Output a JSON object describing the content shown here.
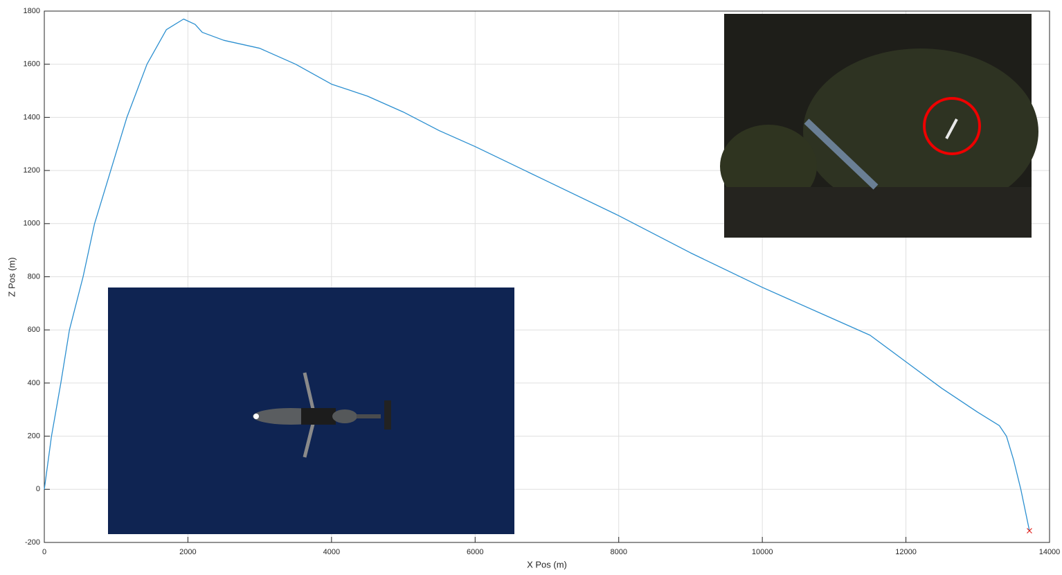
{
  "chart_data": {
    "type": "line",
    "x_label": "X Pos (m)",
    "y_label": "Z Pos (m)",
    "xlim": [
      0,
      14000
    ],
    "xticks": [
      0,
      2000,
      4000,
      6000,
      8000,
      10000,
      12000,
      14000
    ],
    "ylim": [
      -200,
      1800
    ],
    "yticks": [
      -200,
      0,
      200,
      400,
      600,
      800,
      1000,
      1200,
      1400,
      1600,
      1800
    ],
    "grid": true,
    "series": [
      {
        "color": "#2b8fd0",
        "marker": "none",
        "x": [
          0,
          100,
          230,
          350,
          540,
          700,
          925,
          1150,
          1430,
          1700,
          1940,
          2100,
          2200,
          2500,
          3000,
          3500,
          4000,
          4500,
          5000,
          5500,
          6000,
          7000,
          8000,
          9000,
          10000,
          11000,
          11500,
          12000,
          12500,
          13000,
          13300,
          13400,
          13500,
          13600,
          13720
        ],
        "values": [
          0,
          200,
          400,
          600,
          800,
          1000,
          1200,
          1400,
          1600,
          1730,
          1770,
          1750,
          1720,
          1690,
          1660,
          1600,
          1525,
          1480,
          1420,
          1350,
          1290,
          1160,
          1030,
          890,
          760,
          640,
          580,
          480,
          380,
          290,
          240,
          200,
          110,
          0,
          -156
        ]
      },
      {
        "color": "#e0201b",
        "marker": "x",
        "x": [
          13720
        ],
        "values": [
          -156
        ]
      }
    ]
  }
}
